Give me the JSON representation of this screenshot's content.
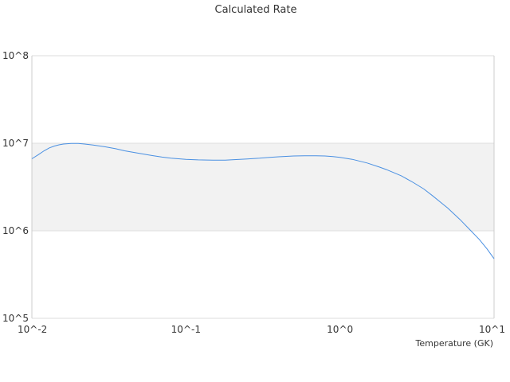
{
  "chart_data": {
    "type": "line",
    "title": "Calculated Rate",
    "xlabel": "Temperature (GK)",
    "ylabel": "",
    "xscale": "log",
    "yscale": "log",
    "xlim": [
      0.01,
      10
    ],
    "ylim": [
      100000,
      100000000
    ],
    "grid": true,
    "legend": "none",
    "x_ticks": [
      {
        "value": 0.01,
        "label": "10^-2"
      },
      {
        "value": 0.1,
        "label": "10^-1"
      },
      {
        "value": 1,
        "label": "10^0"
      },
      {
        "value": 10,
        "label": "10^1"
      }
    ],
    "y_ticks": [
      {
        "value": 100000,
        "label": "10^5"
      },
      {
        "value": 1000000,
        "label": "10^6"
      },
      {
        "value": 10000000,
        "label": "10^7"
      },
      {
        "value": 100000000,
        "label": "10^8"
      }
    ],
    "band": {
      "from": 1000000,
      "to": 10000000,
      "color": "#f2f2f2"
    },
    "colors": {
      "line": "#4a90e2",
      "grid": "#dddddd",
      "axis": "#cccccc"
    },
    "series": [
      {
        "x": [
          0.01,
          0.011,
          0.012,
          0.013,
          0.014,
          0.015,
          0.016,
          0.018,
          0.02,
          0.022,
          0.025,
          0.03,
          0.035,
          0.04,
          0.05,
          0.06,
          0.07,
          0.08,
          0.1,
          0.12,
          0.15,
          0.18,
          0.2,
          0.25,
          0.3,
          0.35,
          0.4,
          0.5,
          0.6,
          0.7,
          0.8,
          0.9,
          1.0,
          1.2,
          1.5,
          1.8,
          2.0,
          2.5,
          3.0,
          3.5,
          4.0,
          5.0,
          6.0,
          7.0,
          8.0,
          9.0,
          10.0
        ],
        "y": [
          6650000,
          7400000,
          8200000,
          8850000,
          9300000,
          9600000,
          9800000,
          9950000,
          9950000,
          9800000,
          9550000,
          9100000,
          8650000,
          8200000,
          7650000,
          7250000,
          6950000,
          6750000,
          6550000,
          6450000,
          6400000,
          6420000,
          6480000,
          6620000,
          6750000,
          6900000,
          7000000,
          7150000,
          7200000,
          7200000,
          7150000,
          7050000,
          6900000,
          6550000,
          5950000,
          5350000,
          5000000,
          4250000,
          3550000,
          3000000,
          2500000,
          1820000,
          1350000,
          1020000,
          800000,
          620000,
          480000
        ]
      }
    ]
  }
}
